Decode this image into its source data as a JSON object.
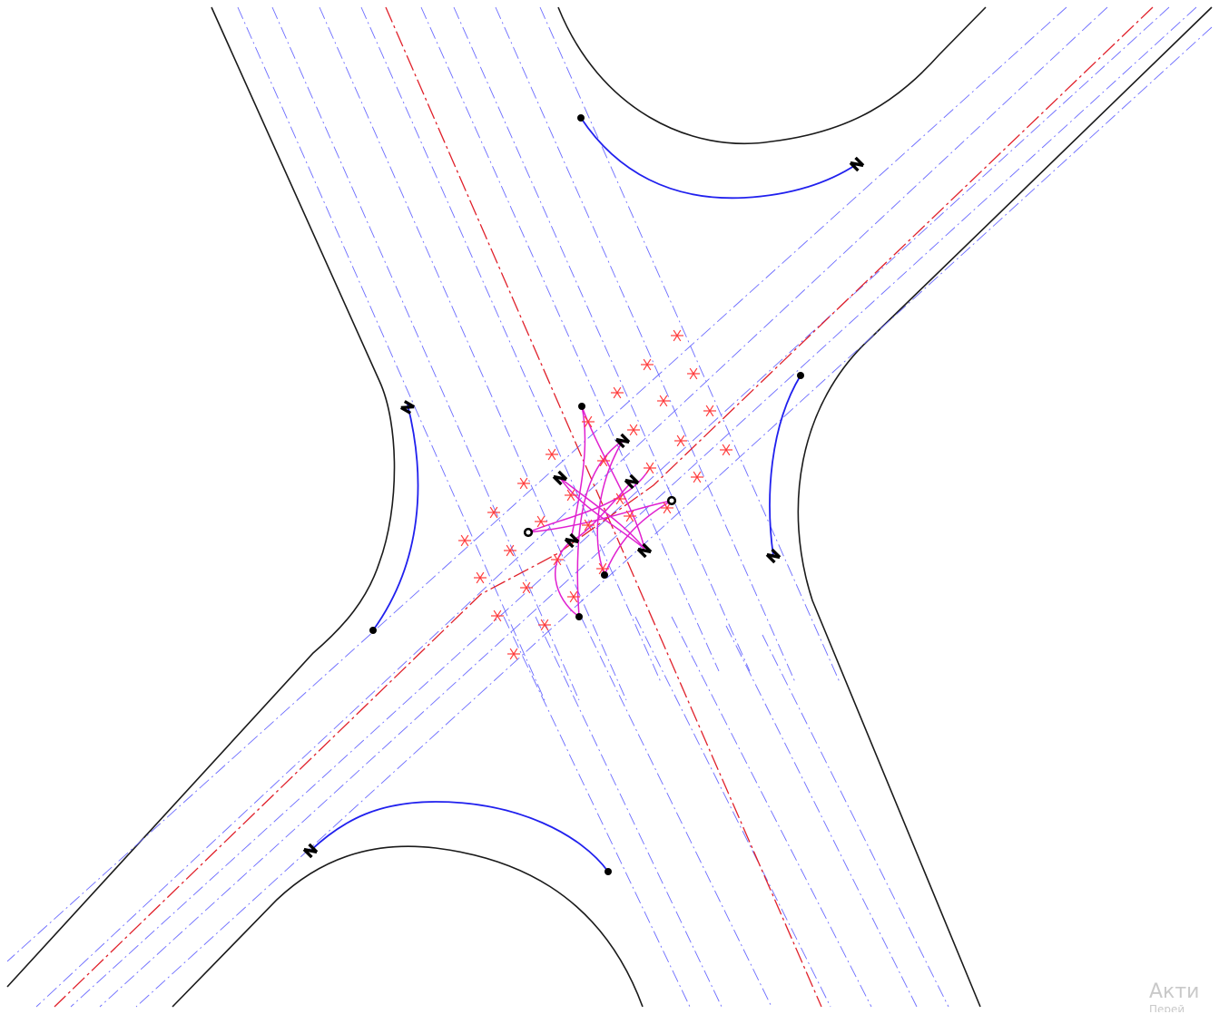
{
  "colors": {
    "road_edge": "#1a1a1a",
    "lane_line": "#6b6bff",
    "axis_line": "#e0202a",
    "corner_arc": "#2020ee",
    "turn_path": "#e020d0",
    "conflict_point": "#ff3b3b",
    "marker": "#000000",
    "watermark": "#c9c9c9",
    "background": "#ffffff"
  },
  "icons": {
    "endpoint": "filled-dot-icon",
    "start_point": "ring-icon",
    "direction": "n-glyph-icon",
    "conflict_point": "asterisk-icon"
  },
  "watermark": {
    "line1": "Акти",
    "line2": "Перей"
  }
}
